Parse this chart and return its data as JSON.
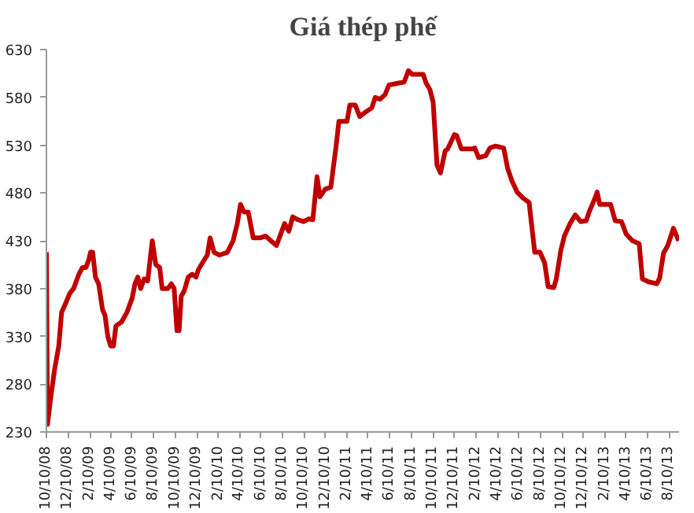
{
  "chart_data": {
    "type": "line",
    "title": "Giá thép phế",
    "x": [
      "2008-10-10",
      "2008-10-13",
      "2008-10-22",
      "2008-11-02",
      "2008-11-14",
      "2008-11-22",
      "2008-12-04",
      "2008-12-15",
      "2008-12-26",
      "2009-01-10",
      "2009-01-20",
      "2009-01-30",
      "2009-02-07",
      "2009-02-12",
      "2009-02-18",
      "2009-02-26",
      "2009-03-07",
      "2009-03-18",
      "2009-03-25",
      "2009-04-02",
      "2009-04-10",
      "2009-04-18",
      "2009-04-25",
      "2009-05-11",
      "2009-05-26",
      "2009-06-10",
      "2009-06-18",
      "2009-06-26",
      "2009-07-04",
      "2009-07-14",
      "2009-07-24",
      "2009-08-06",
      "2009-08-16",
      "2009-08-27",
      "2009-09-03",
      "2009-09-19",
      "2009-09-29",
      "2009-10-07",
      "2009-10-15",
      "2009-10-21",
      "2009-10-27",
      "2009-11-05",
      "2009-11-16",
      "2009-11-27",
      "2009-12-08",
      "2009-12-15",
      "2009-12-28",
      "2010-01-09",
      "2010-01-17",
      "2010-01-28",
      "2010-02-12",
      "2010-03-07",
      "2010-03-23",
      "2010-04-04",
      "2010-04-13",
      "2010-04-23",
      "2010-05-05",
      "2010-05-19",
      "2010-06-08",
      "2010-06-23",
      "2010-07-08",
      "2010-07-24",
      "2010-08-08",
      "2010-08-16",
      "2010-08-28",
      "2010-09-08",
      "2010-09-23",
      "2010-10-09",
      "2010-10-24",
      "2010-11-04",
      "2010-11-16",
      "2010-11-24",
      "2010-12-09",
      "2010-12-25",
      "2011-01-09",
      "2011-01-17",
      "2011-02-09",
      "2011-02-17",
      "2011-03-04",
      "2011-03-17",
      "2011-04-04",
      "2011-04-20",
      "2011-04-30",
      "2011-05-13",
      "2011-05-28",
      "2011-06-08",
      "2011-07-06",
      "2011-07-21",
      "2011-08-02",
      "2011-08-13",
      "2011-09-13",
      "2011-09-21",
      "2011-10-02",
      "2011-10-11",
      "2011-10-22",
      "2011-11-01",
      "2011-11-14",
      "2011-11-21",
      "2011-11-29",
      "2011-12-10",
      "2011-12-17",
      "2011-12-30",
      "2012-01-30",
      "2012-02-06",
      "2012-02-17",
      "2012-03-08",
      "2012-03-20",
      "2012-04-05",
      "2012-04-28",
      "2012-05-09",
      "2012-05-21",
      "2012-06-05",
      "2012-06-21",
      "2012-07-09",
      "2012-07-25",
      "2012-08-09",
      "2012-08-22",
      "2012-09-01",
      "2012-09-17",
      "2012-09-24",
      "2012-10-07",
      "2012-10-17",
      "2012-11-02",
      "2012-11-17",
      "2012-12-02",
      "2012-12-18",
      "2012-12-26",
      "2013-01-10",
      "2013-01-18",
      "2013-01-25",
      "2013-02-25",
      "2013-03-10",
      "2013-03-28",
      "2013-04-10",
      "2013-04-28",
      "2013-05-17",
      "2013-05-26",
      "2013-06-13",
      "2013-07-06",
      "2013-07-14",
      "2013-07-25",
      "2013-08-06",
      "2013-08-22",
      "2013-09-06"
    ],
    "series": [
      {
        "color": "#c00000",
        "values": [
          418,
          238,
          265,
          295,
          320,
          355,
          365,
          375,
          380,
          395,
          402,
          402,
          410,
          418,
          418,
          392,
          385,
          358,
          352,
          330,
          320,
          320,
          341,
          345,
          355,
          370,
          385,
          392,
          380,
          390,
          388,
          430,
          405,
          402,
          380,
          380,
          385,
          380,
          336,
          336,
          372,
          378,
          392,
          395,
          392,
          400,
          408,
          415,
          433,
          418,
          415,
          418,
          430,
          448,
          468,
          460,
          460,
          433,
          433,
          435,
          430,
          425,
          440,
          448,
          440,
          455,
          452,
          450,
          453,
          452,
          497,
          476,
          484,
          486,
          529,
          555,
          555,
          572,
          572,
          560,
          565,
          569,
          580,
          578,
          583,
          593,
          595,
          596,
          608,
          604,
          604,
          595,
          588,
          575,
          509,
          501,
          524,
          526,
          532,
          541,
          540,
          526,
          526,
          527,
          517,
          519,
          527,
          529,
          527,
          506,
          493,
          481,
          475,
          470,
          418,
          418,
          407,
          382,
          381,
          390,
          420,
          435,
          448,
          457,
          450,
          451,
          460,
          473,
          481,
          468,
          468,
          451,
          450,
          437,
          430,
          427,
          390,
          387,
          385,
          391,
          417,
          425,
          443,
          430
        ]
      }
    ],
    "xlim": [
      "2008-10-10",
      "2013-09-07"
    ],
    "xticks": [
      {
        "value": "2008-10-10",
        "label": "10/10/08"
      },
      {
        "value": "2008-12-10",
        "label": "12/10/08"
      },
      {
        "value": "2009-02-10",
        "label": "2/10/09"
      },
      {
        "value": "2009-04-10",
        "label": "4/10/09"
      },
      {
        "value": "2009-06-10",
        "label": "6/10/09"
      },
      {
        "value": "2009-08-10",
        "label": "8/10/09"
      },
      {
        "value": "2009-10-10",
        "label": "10/10/09"
      },
      {
        "value": "2009-12-10",
        "label": "12/10/09"
      },
      {
        "value": "2010-02-10",
        "label": "2/10/10"
      },
      {
        "value": "2010-04-10",
        "label": "4/10/10"
      },
      {
        "value": "2010-06-10",
        "label": "6/10/10"
      },
      {
        "value": "2010-08-10",
        "label": "8/10/10"
      },
      {
        "value": "2010-10-10",
        "label": "10/10/10"
      },
      {
        "value": "2010-12-10",
        "label": "12/10/10"
      },
      {
        "value": "2011-02-10",
        "label": "2/10/11"
      },
      {
        "value": "2011-04-10",
        "label": "4/10/11"
      },
      {
        "value": "2011-06-10",
        "label": "6/10/11"
      },
      {
        "value": "2011-08-10",
        "label": "8/10/11"
      },
      {
        "value": "2011-10-10",
        "label": "10/10/11"
      },
      {
        "value": "2011-12-10",
        "label": "12/10/11"
      },
      {
        "value": "2012-02-10",
        "label": "2/10/12"
      },
      {
        "value": "2012-04-10",
        "label": "4/10/12"
      },
      {
        "value": "2012-06-10",
        "label": "6/10/12"
      },
      {
        "value": "2012-08-10",
        "label": "8/10/12"
      },
      {
        "value": "2012-10-10",
        "label": "10/10/12"
      },
      {
        "value": "2012-12-10",
        "label": "12/10/12"
      },
      {
        "value": "2013-02-10",
        "label": "2/10/13"
      },
      {
        "value": "2013-04-10",
        "label": "4/10/13"
      },
      {
        "value": "2013-06-10",
        "label": "6/10/13"
      },
      {
        "value": "2013-08-10",
        "label": "8/10/13"
      }
    ],
    "ylim": [
      230,
      630
    ],
    "yticks": [
      230,
      280,
      330,
      380,
      430,
      480,
      530,
      580,
      630
    ],
    "grid": false
  }
}
